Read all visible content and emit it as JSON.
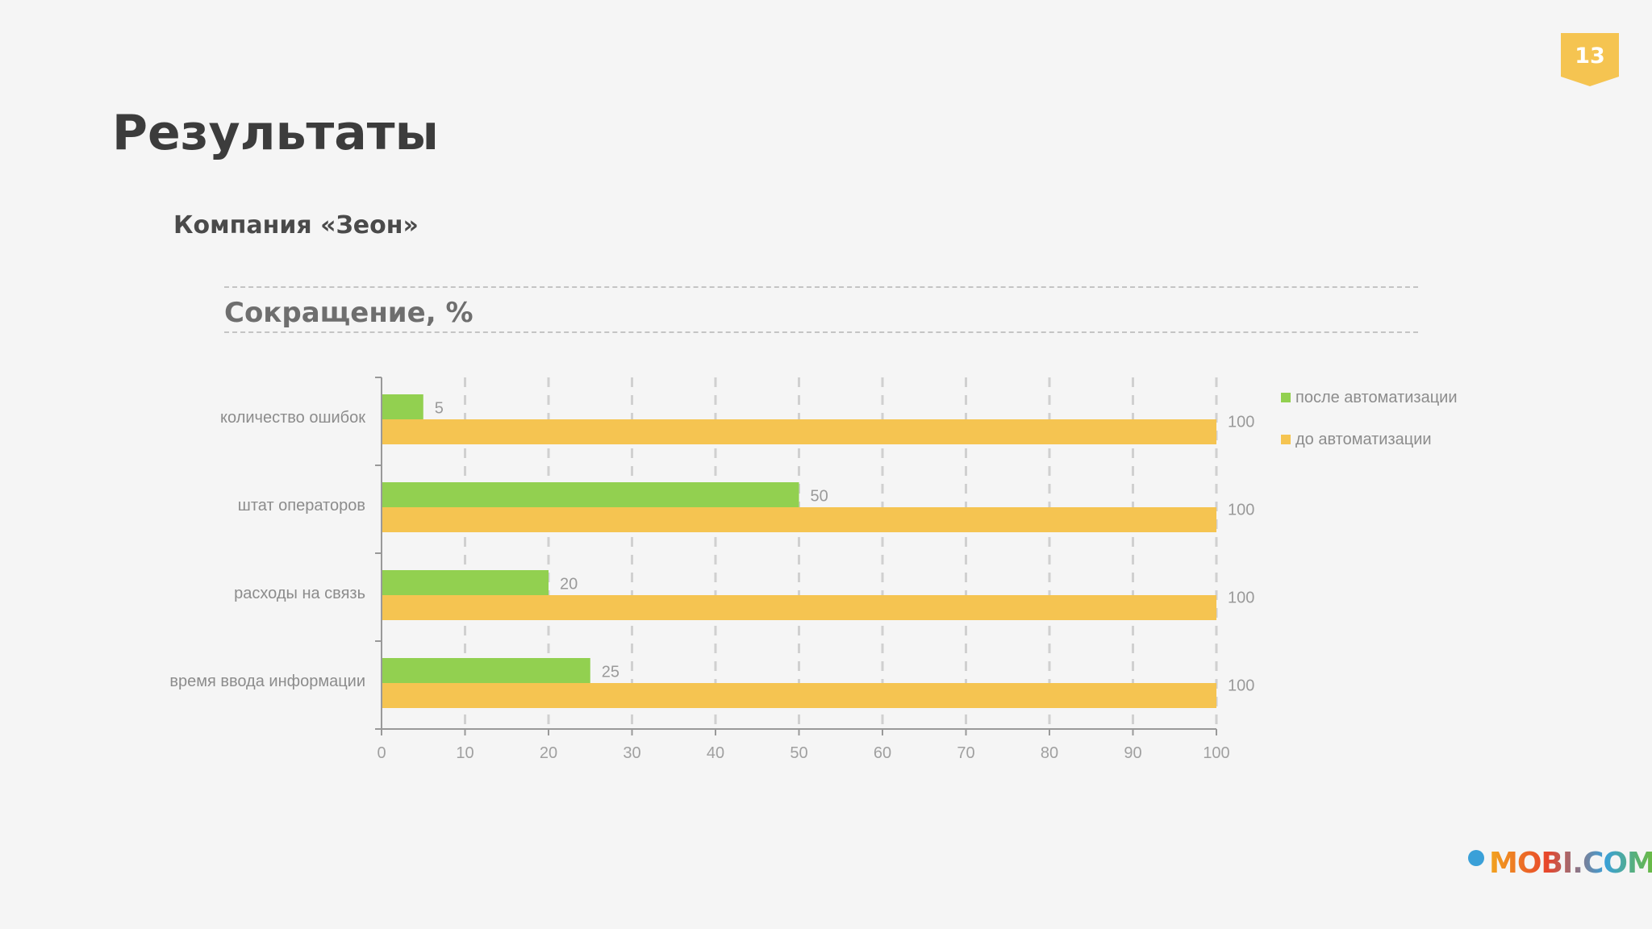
{
  "page_number": "13",
  "title": "Результаты",
  "subtitle": "Компания «Зеон»",
  "section_title": "Сокращение, %",
  "logo_text": "MOBI.COM",
  "colors": {
    "after": "#92d050",
    "before": "#f5c451",
    "badge": "#f5c451",
    "axis": "#999999",
    "grid": "#d0d0d0",
    "label": "#8c8c8c"
  },
  "chart_data": {
    "type": "bar",
    "orientation": "horizontal",
    "title": "Сокращение, %",
    "categories": [
      "количество ошибок",
      "штат операторов",
      "расходы на связь",
      "время ввода информации"
    ],
    "series": [
      {
        "name": "после автоматизации",
        "values": [
          5,
          50,
          20,
          25
        ]
      },
      {
        "name": "до автоматизации",
        "values": [
          100,
          100,
          100,
          100
        ]
      }
    ],
    "xlim": [
      0,
      100
    ],
    "xticks": [
      0,
      10,
      20,
      30,
      40,
      50,
      60,
      70,
      80,
      90,
      100
    ],
    "grid": true,
    "legend": "right"
  }
}
